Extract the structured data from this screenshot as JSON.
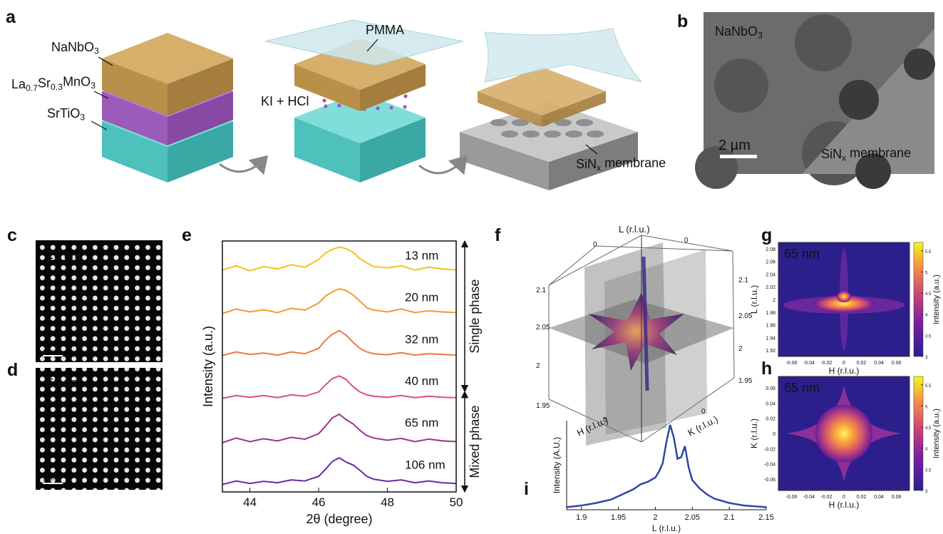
{
  "figure": {
    "a": {
      "label": "a",
      "stack": [
        [
          "NaNbO",
          "3"
        ],
        [
          "La",
          "0.7",
          "Sr",
          "0.3",
          "MnO",
          "3"
        ],
        [
          "SrTiO",
          "3"
        ]
      ],
      "polymer": "PMMA",
      "etchant": "KI + HCl",
      "membrane": [
        "SiN",
        "x",
        " membrane"
      ]
    },
    "b": {
      "label": "b",
      "film": [
        "NaNbO",
        "3"
      ],
      "scale": "2 µm",
      "membrane": [
        "SiN",
        "x",
        " membrane"
      ]
    },
    "c": {
      "label": "c",
      "thickness": "13 nm",
      "scale": "1 nm"
    },
    "d": {
      "label": "d",
      "thickness": "65 nm",
      "scale": "1 nm"
    },
    "f": {
      "label": "f",
      "L": "L (r.l.u.)",
      "H": "H (r.l.u.)",
      "K": "K (r.l.u.)",
      "zeros": [
        0,
        0,
        0,
        0
      ],
      "left_ticks": [
        2.1,
        2.05,
        2,
        1.95
      ],
      "right_ticks": [
        2.1,
        2.05,
        2,
        1.95
      ]
    }
  },
  "chart_data": [
    {
      "type": "stacked-lines",
      "panel": "e",
      "xlabel": "2θ (degree)",
      "ylabel": "Intensity (a.u.)",
      "xlim": [
        43.2,
        50
      ],
      "xticks": [
        44,
        46,
        48,
        50
      ],
      "phases": [
        "Single phase",
        "Mixed phase"
      ],
      "x": [
        43.2,
        43.6,
        44,
        44.4,
        44.8,
        45.2,
        45.6,
        46,
        46.2,
        46.4,
        46.6,
        46.8,
        47,
        47.2,
        47.4,
        47.6,
        48,
        48.4,
        48.8,
        49.2,
        49.6,
        50
      ],
      "series": [
        {
          "name": "13 nm",
          "color": "#f6c21c",
          "values": [
            0.3,
            0.42,
            0.28,
            0.4,
            0.33,
            0.45,
            0.38,
            0.6,
            0.78,
            0.88,
            0.95,
            0.9,
            0.8,
            0.62,
            0.5,
            0.4,
            0.36,
            0.42,
            0.3,
            0.38,
            0.33,
            0.3
          ]
        },
        {
          "name": "20 nm",
          "color": "#f39a2c",
          "values": [
            0.25,
            0.38,
            0.3,
            0.36,
            0.28,
            0.4,
            0.35,
            0.55,
            0.75,
            0.86,
            0.95,
            0.9,
            0.78,
            0.6,
            0.42,
            0.35,
            0.3,
            0.38,
            0.28,
            0.33,
            0.3,
            0.28
          ]
        },
        {
          "name": "32 nm",
          "color": "#ee774a",
          "values": [
            0.25,
            0.35,
            0.28,
            0.32,
            0.26,
            0.35,
            0.3,
            0.45,
            0.68,
            0.85,
            0.95,
            0.82,
            0.62,
            0.45,
            0.35,
            0.3,
            0.27,
            0.33,
            0.26,
            0.3,
            0.28,
            0.26
          ]
        },
        {
          "name": "40 nm",
          "color": "#d9536b",
          "values": [
            0.22,
            0.3,
            0.25,
            0.3,
            0.24,
            0.32,
            0.28,
            0.4,
            0.6,
            0.78,
            0.85,
            0.75,
            0.55,
            0.4,
            0.32,
            0.28,
            0.25,
            0.3,
            0.24,
            0.28,
            0.25,
            0.24
          ]
        },
        {
          "name": "65 nm",
          "color": "#9c3190",
          "values": [
            0.15,
            0.28,
            0.18,
            0.26,
            0.2,
            0.3,
            0.25,
            0.4,
            0.62,
            0.85,
            0.95,
            0.8,
            0.68,
            0.5,
            0.35,
            0.28,
            0.22,
            0.27,
            0.18,
            0.25,
            0.2,
            0.18
          ]
        },
        {
          "name": "106 nm",
          "color": "#6b2b9e",
          "values": [
            0.15,
            0.25,
            0.18,
            0.24,
            0.2,
            0.28,
            0.25,
            0.38,
            0.58,
            0.8,
            0.9,
            0.78,
            0.7,
            0.55,
            0.38,
            0.3,
            0.24,
            0.28,
            0.2,
            0.25,
            0.2,
            0.18
          ]
        }
      ]
    },
    {
      "type": "line",
      "panel": "i",
      "xlabel": "L (r.l.u.)",
      "ylabel": "Intensity (A.U.)",
      "xlim": [
        1.88,
        2.15
      ],
      "xticks": [
        1.9,
        1.95,
        2,
        2.05,
        2.1,
        2.15
      ],
      "ylim": [
        0,
        1.05
      ],
      "color": "#2f47a8",
      "x": [
        1.88,
        1.9,
        1.92,
        1.94,
        1.95,
        1.96,
        1.97,
        1.98,
        1.99,
        2,
        2.005,
        2.01,
        2.015,
        2.02,
        2.025,
        2.03,
        2.035,
        2.04,
        2.045,
        2.05,
        2.06,
        2.07,
        2.08,
        2.1,
        2.12,
        2.15
      ],
      "values": [
        0.03,
        0.05,
        0.08,
        0.12,
        0.16,
        0.2,
        0.24,
        0.3,
        0.33,
        0.38,
        0.45,
        0.55,
        0.8,
        1.0,
        0.85,
        0.6,
        0.62,
        0.75,
        0.5,
        0.35,
        0.25,
        0.18,
        0.13,
        0.08,
        0.05,
        0.03
      ]
    },
    {
      "type": "heatmap",
      "panel": "g",
      "thickness": "65 nm",
      "xlabel": "H (r.l.u.)",
      "ylabel": "L (r.l.u.)",
      "shape": "cross",
      "xlim": [
        -0.075,
        0.075
      ],
      "xticks": [
        -0.06,
        -0.04,
        -0.02,
        0,
        0.02,
        0.04,
        0.06
      ],
      "ylim": [
        1.91,
        2.09
      ],
      "yticks": [
        1.92,
        1.94,
        1.96,
        1.98,
        2,
        2.02,
        2.04,
        2.06,
        2.08
      ],
      "colorbar": {
        "label": "Intensity (a.u.)",
        "lim": [
          3,
          5.7
        ],
        "ticks": [
          3,
          3.5,
          4,
          4.5,
          5,
          5.5
        ]
      }
    },
    {
      "type": "heatmap",
      "panel": "h",
      "thickness": "65 nm",
      "xlabel": "H (r.l.u.)",
      "ylabel": "K (r.l.u.)",
      "shape": "star",
      "xlim": [
        -0.075,
        0.075
      ],
      "xticks": [
        -0.06,
        -0.04,
        -0.02,
        0,
        0.02,
        0.04,
        0.06
      ],
      "ylim": [
        -0.075,
        0.075
      ],
      "yticks": [
        -0.06,
        -0.04,
        -0.02,
        0,
        0.02,
        0.04,
        0.06
      ],
      "colorbar": {
        "label": "Intensity (a.u.)",
        "lim": [
          3,
          5.7
        ],
        "ticks": [
          3,
          3.5,
          4,
          4.5,
          5,
          5.5
        ]
      }
    }
  ]
}
